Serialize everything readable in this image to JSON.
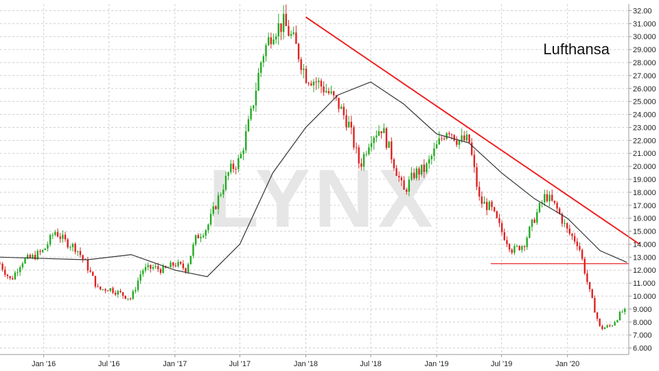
{
  "chart_data": {
    "type": "candlestick",
    "title": "Lufthansa",
    "watermark": "LYNX",
    "y_axis": {
      "side": "right",
      "min": 5.5,
      "max": 32.5,
      "ticks": [
        6,
        7,
        8,
        9,
        10,
        11,
        12,
        13,
        14,
        15,
        16,
        17,
        18,
        19,
        20,
        21,
        22,
        23,
        24,
        25,
        26,
        27,
        28,
        29,
        30,
        31,
        32
      ],
      "tick_labels": [
        "6.000",
        "7.000",
        "8.000",
        "9.000",
        "10.000",
        "11.000",
        "12.000",
        "13.000",
        "14.000",
        "15.000",
        "16.000",
        "17.000",
        "18.000",
        "19.000",
        "20.000",
        "21.000",
        "22.000",
        "23.000",
        "24.000",
        "25.000",
        "26.000",
        "27.000",
        "28.000",
        "29.000",
        "30.000",
        "31.000",
        "32.00"
      ]
    },
    "x_axis": {
      "start": "2015-09-01",
      "end": "2020-06-20",
      "ticks": [
        "2016-01-01",
        "2016-07-01",
        "2017-01-01",
        "2017-07-01",
        "2018-01-01",
        "2018-07-01",
        "2019-01-01",
        "2019-07-01",
        "2020-01-01"
      ],
      "tick_labels": [
        "Jan '16",
        "Jul '16",
        "Jan '17",
        "Jul '17",
        "Jan '18",
        "Jul '18",
        "Jan '19",
        "Jul '19",
        "Jan '20"
      ]
    },
    "grid": true,
    "colors": {
      "up": "#22aa22",
      "down": "#dd2222",
      "moving_average": "#333333",
      "trendline": "#ee2222",
      "support": "#ee2222",
      "grid": "#cfcfcf",
      "watermark": "#e6e6e6"
    },
    "price_series": {
      "dates": [
        "2015-09-01",
        "2015-10-01",
        "2015-11-01",
        "2015-12-01",
        "2016-01-01",
        "2016-02-01",
        "2016-03-01",
        "2016-04-01",
        "2016-05-01",
        "2016-06-01",
        "2016-07-01",
        "2016-08-01",
        "2016-09-01",
        "2016-10-01",
        "2016-11-01",
        "2016-12-01",
        "2017-01-01",
        "2017-02-01",
        "2017-03-01",
        "2017-04-01",
        "2017-05-01",
        "2017-06-01",
        "2017-07-01",
        "2017-08-01",
        "2017-09-01",
        "2017-10-01",
        "2017-11-01",
        "2017-12-01",
        "2018-01-01",
        "2018-02-01",
        "2018-03-01",
        "2018-04-01",
        "2018-05-01",
        "2018-06-01",
        "2018-07-01",
        "2018-08-01",
        "2018-09-01",
        "2018-10-01",
        "2018-11-01",
        "2018-12-01",
        "2019-01-01",
        "2019-02-01",
        "2019-03-01",
        "2019-04-01",
        "2019-05-01",
        "2019-06-01",
        "2019-07-01",
        "2019-08-01",
        "2019-09-01",
        "2019-10-01",
        "2019-11-01",
        "2019-12-01",
        "2020-01-01",
        "2020-02-01",
        "2020-03-01",
        "2020-04-01",
        "2020-05-01",
        "2020-06-01"
      ],
      "close": [
        12.5,
        11.2,
        12.7,
        13.0,
        13.5,
        15.0,
        14.2,
        13.7,
        12.3,
        10.5,
        10.6,
        10.2,
        9.8,
        12.0,
        12.2,
        12.0,
        12.5,
        12.1,
        14.5,
        15.3,
        17.5,
        19.6,
        20.5,
        24.0,
        28.5,
        30.5,
        31.0,
        29.5,
        27.0,
        26.5,
        25.8,
        24.8,
        23.2,
        20.0,
        22.3,
        23.0,
        20.5,
        18.0,
        19.5,
        19.8,
        21.5,
        23.0,
        22.0,
        22.0,
        17.3,
        16.8,
        15.0,
        13.5,
        14.0,
        16.0,
        17.8,
        16.8,
        15.0,
        14.0,
        10.5,
        7.5,
        7.7,
        8.8
      ]
    },
    "moving_average": {
      "dates": [
        "2015-09-01",
        "2016-01-01",
        "2016-05-01",
        "2016-09-01",
        "2017-01-01",
        "2017-04-01",
        "2017-07-01",
        "2017-10-01",
        "2018-01-01",
        "2018-04-01",
        "2018-07-01",
        "2018-10-01",
        "2019-01-01",
        "2019-04-01",
        "2019-07-01",
        "2019-10-01",
        "2020-01-01",
        "2020-04-01",
        "2020-06-15"
      ],
      "values": [
        13.0,
        12.9,
        12.8,
        13.2,
        12.0,
        11.5,
        14.0,
        19.5,
        23.0,
        25.5,
        26.5,
        24.8,
        22.5,
        21.8,
        19.5,
        17.5,
        16.0,
        13.5,
        12.6
      ]
    },
    "trendline": {
      "start": [
        "2018-01-01",
        31.5
      ],
      "end": [
        "2020-07-20",
        14.0
      ]
    },
    "support_line": {
      "start": [
        "2019-06-01",
        12.5
      ],
      "end": [
        "2020-06-20",
        12.5
      ]
    }
  }
}
